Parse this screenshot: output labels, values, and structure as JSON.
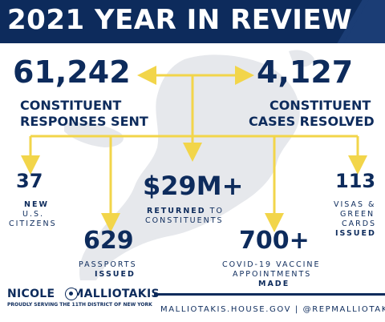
{
  "header": {
    "title": "2021 YEAR IN REVIEW"
  },
  "stats": {
    "responses": {
      "value": "61,242",
      "line1": "CONSTITUENT",
      "line2": "RESPONSES SENT"
    },
    "cases": {
      "value": "4,127",
      "line1": "CONSTITUENT",
      "line2": "CASES RESOLVED"
    },
    "citizens": {
      "value": "37",
      "line1": "NEW",
      "line2": "U.S.",
      "line3": "CITIZENS"
    },
    "passports": {
      "value": "629",
      "line1": "PASSPORTS",
      "line2": "ISSUED"
    },
    "returned": {
      "value": "$29M+",
      "line1_bold": "RETURNED",
      "line1_rest": " TO",
      "line2": "CONSTITUENTS"
    },
    "vaccine": {
      "value": "700+",
      "line1": "COVID-19 VACCINE",
      "line2": "APPOINTMENTS",
      "line3": "MADE"
    },
    "visas": {
      "value": "113",
      "line1": "VISAS &",
      "line2": "GREEN",
      "line3": "CARDS",
      "line4": "ISSUED"
    }
  },
  "footer": {
    "name_first": "NICOLE",
    "name_last": "MALLIOTAKIS",
    "tagline": "PROUDLY SERVING THE 11TH DISTRICT OF NEW YORK",
    "links": "MALLIOTAKIS.HOUSE.GOV | @REPMALLIOTAKIS"
  },
  "colors": {
    "navy": "#0d2b5c",
    "yellow": "#f2d54a",
    "map_gray": "#e6e8ec"
  },
  "icons": {
    "seal": "congressional-seal-icon",
    "arrows": "connector-arrow-icon"
  }
}
